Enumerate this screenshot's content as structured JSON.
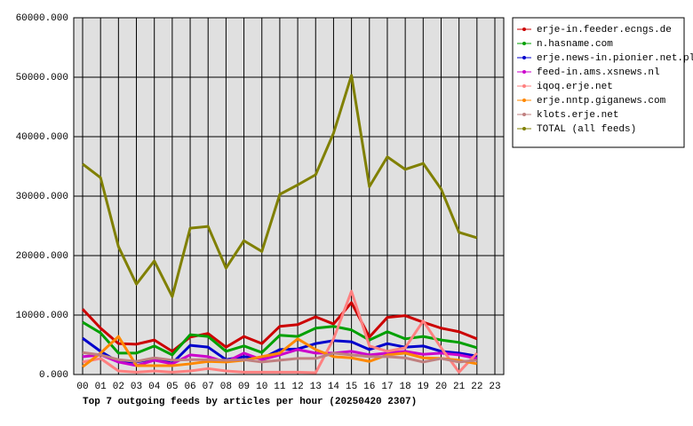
{
  "chart_data": {
    "type": "line",
    "title": "Top 7 outgoing feeds by articles per hour (20250420 2307)",
    "categories": [
      "00",
      "01",
      "02",
      "03",
      "04",
      "05",
      "06",
      "07",
      "08",
      "09",
      "10",
      "11",
      "12",
      "13",
      "14",
      "15",
      "16",
      "17",
      "18",
      "19",
      "20",
      "21",
      "22",
      "23"
    ],
    "series": [
      {
        "name": "erje-in.feeder.ecngs.de",
        "color": "#cc0000",
        "values": [
          11000,
          7800,
          5200,
          5100,
          5800,
          3900,
          6300,
          6900,
          4600,
          6400,
          5200,
          8100,
          8400,
          9700,
          8500,
          12100,
          6300,
          9600,
          9900,
          8800,
          7800,
          7200,
          6000,
          null
        ]
      },
      {
        "name": "n.hasname.com",
        "color": "#00a000",
        "values": [
          8800,
          7000,
          3600,
          3600,
          4800,
          3300,
          6700,
          6400,
          3900,
          4800,
          3700,
          6600,
          6400,
          7800,
          8100,
          7500,
          5800,
          7200,
          6000,
          6400,
          5800,
          5400,
          4500,
          null
        ]
      },
      {
        "name": "erje.news-in.pionier.net.pl",
        "color": "#0000cc",
        "values": [
          6100,
          3900,
          2100,
          2100,
          2700,
          1900,
          4900,
          4600,
          2500,
          3000,
          2700,
          4200,
          4300,
          5200,
          5700,
          5500,
          4200,
          5200,
          4600,
          4800,
          3900,
          3600,
          3100,
          null
        ]
      },
      {
        "name": "feed-in.ams.xsnews.nl",
        "color": "#cc00cc",
        "values": [
          3000,
          3300,
          2100,
          1500,
          2400,
          1800,
          3300,
          3000,
          2100,
          3600,
          2500,
          3300,
          4200,
          3600,
          3600,
          3900,
          3300,
          3600,
          3900,
          3400,
          3600,
          3300,
          2700,
          null
        ]
      },
      {
        "name": "iqoq.erje.net",
        "color": "#ff8080",
        "values": [
          2100,
          2700,
          600,
          400,
          600,
          400,
          600,
          1000,
          600,
          400,
          400,
          400,
          400,
          300,
          6000,
          14000,
          4800,
          3900,
          4500,
          9000,
          4500,
          400,
          3600,
          null
        ]
      },
      {
        "name": "erje.nntp.giganews.com",
        "color": "#ff8800",
        "values": [
          1300,
          3600,
          6400,
          1500,
          1500,
          1500,
          1800,
          2200,
          2100,
          2400,
          3000,
          3600,
          6000,
          4200,
          3000,
          2800,
          2200,
          3300,
          3600,
          2800,
          2700,
          2400,
          1800,
          null
        ]
      },
      {
        "name": "klots.erje.net",
        "color": "#c08080",
        "values": [
          3700,
          3300,
          2500,
          2200,
          2800,
          2400,
          2500,
          2500,
          2400,
          2500,
          2100,
          2400,
          2700,
          2700,
          3600,
          3300,
          3000,
          3000,
          2800,
          2100,
          2700,
          2100,
          2400,
          null
        ]
      },
      {
        "name": "TOTAL (all feeds)",
        "color": "#808000",
        "values": [
          35400,
          33100,
          21500,
          15200,
          19100,
          13100,
          24600,
          24900,
          17900,
          22500,
          20700,
          30300,
          31900,
          33600,
          40600,
          50300,
          31600,
          36600,
          34500,
          35500,
          31200,
          23900,
          23000,
          null
        ]
      }
    ],
    "ylim": [
      0,
      60000
    ],
    "yticks": [
      {
        "value": 0,
        "label": "0.000"
      },
      {
        "value": 10000,
        "label": "10000.000"
      },
      {
        "value": 20000,
        "label": "20000.000"
      },
      {
        "value": 30000,
        "label": "30000.000"
      },
      {
        "value": 40000,
        "label": "40000.000"
      },
      {
        "value": 50000,
        "label": "50000.000"
      },
      {
        "value": 60000,
        "label": "60000.000"
      }
    ],
    "grid": true,
    "legend": "right"
  }
}
